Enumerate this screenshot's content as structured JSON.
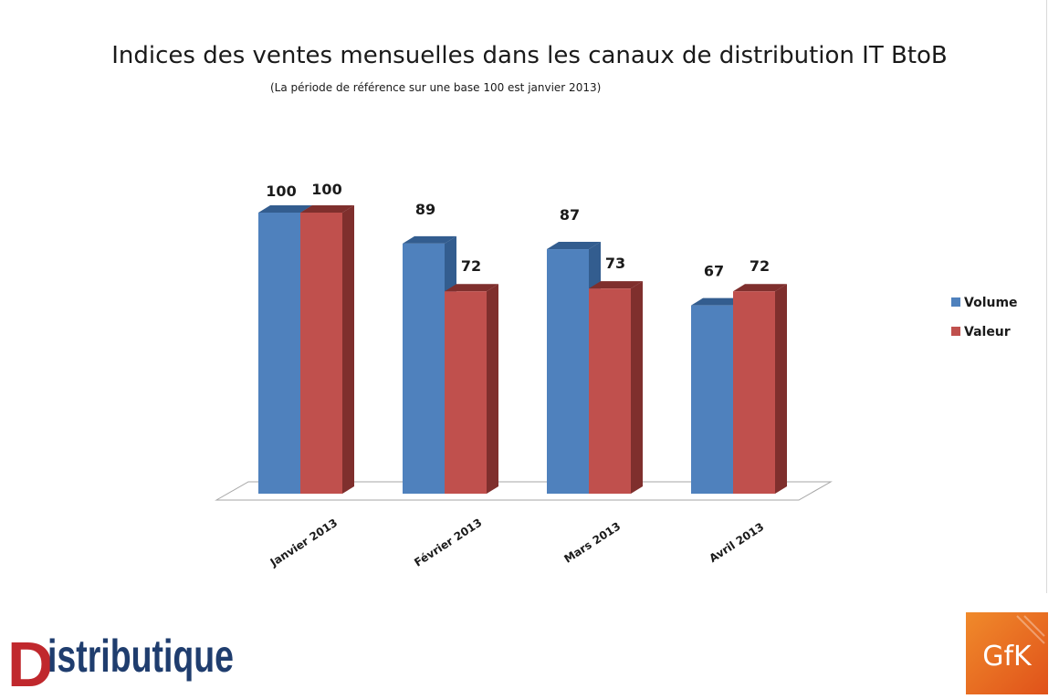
{
  "chart_data": {
    "type": "bar",
    "title": "Indices des ventes mensuelles dans les canaux de distribution IT BtoB",
    "subtitle": "(La période de référence sur une base 100 est janvier 2013)",
    "categories": [
      "Janvier 2013",
      "Février 2013",
      "Mars 2013",
      "Avril 2013"
    ],
    "series": [
      {
        "name": "Volume",
        "values": [
          100,
          89,
          87,
          67
        ],
        "color": "#4f81bd",
        "side_color": "#335d8f"
      },
      {
        "name": "Valeur",
        "values": [
          100,
          72,
          73,
          72
        ],
        "color": "#c0504d",
        "side_color": "#7f2f2d"
      }
    ],
    "ylim": [
      0,
      100
    ],
    "grid": false,
    "legend": "right",
    "three_d": true
  },
  "logos": {
    "distributique": {
      "text": "Distributique",
      "first_letter_color": "#c0282d",
      "text_color": "#1f3d6e"
    },
    "gfk": {
      "text": "GfK",
      "color": "#e8641b"
    }
  }
}
